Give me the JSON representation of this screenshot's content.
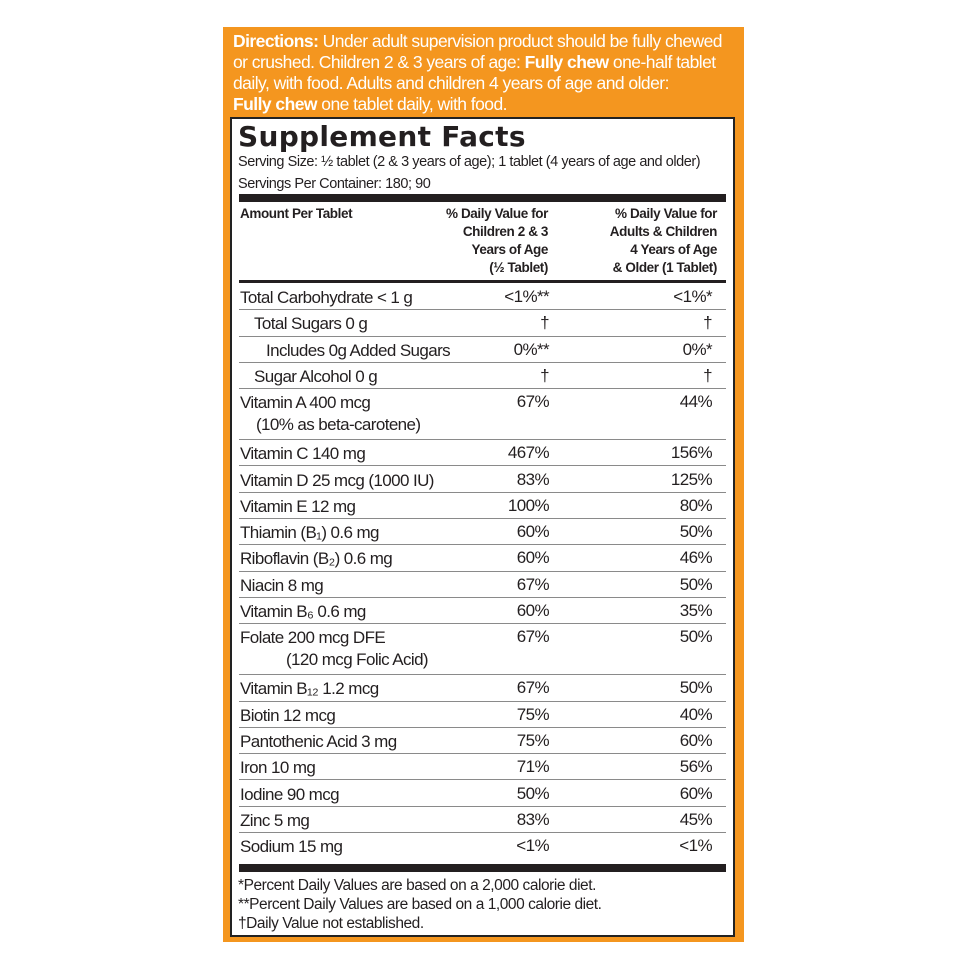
{
  "colors": {
    "background": "#f4961f",
    "panel": "#ffffff",
    "text": "#231f20"
  },
  "directions": {
    "label": "Directions:",
    "text1": " Under adult supervision product should be fully chewed or crushed. Children 2 & 3 years of age: ",
    "bold1": "Fully chew",
    "text2": " one-half tablet daily, with food. Adults and children 4 years of age and older: ",
    "bold2": "Fully chew",
    "text3": " one tablet daily, with food."
  },
  "facts": {
    "title": "Supplement Facts",
    "serving_size": "Serving Size: ½ tablet (2 & 3 years of age); 1 tablet (4 years of age and older)",
    "servings_per_container": "Servings Per Container: 180; 90",
    "header": {
      "amount": "Amount Per Tablet",
      "col1": [
        "% Daily Value for",
        "Children 2 & 3",
        "Years of Age",
        "(½ Tablet)"
      ],
      "col2": [
        "% Daily Value for",
        "Adults & Children",
        "4 Years of Age",
        "& Older (1 Tablet)"
      ]
    },
    "rows": [
      {
        "name": "Total Carbohydrate < 1 g",
        "v1": "<1%**",
        "v2": "<1%*"
      },
      {
        "name": "Total Sugars 0 g",
        "v1": "†",
        "v2": "†"
      },
      {
        "name": "Includes 0g Added Sugars",
        "v1": "0%**",
        "v2": "0%*"
      },
      {
        "name": "Sugar Alcohol 0 g",
        "v1": "†",
        "v2": "†"
      },
      {
        "name": "Vitamin A 400 mcg",
        "sub": "(10% as beta-carotene)",
        "v1": "67%",
        "v2": "44%"
      },
      {
        "name": "Vitamin C 140 mg",
        "v1": "467%",
        "v2": "156%"
      },
      {
        "name": "Vitamin D 25 mcg (1000 IU)",
        "v1": "83%",
        "v2": "125%"
      },
      {
        "name": "Vitamin E 12 mg",
        "v1": "100%",
        "v2": "80%"
      },
      {
        "name": "Thiamin (B₁) 0.6 mg",
        "v1": "60%",
        "v2": "50%"
      },
      {
        "name": "Riboflavin (B₂) 0.6 mg",
        "v1": "60%",
        "v2": "46%"
      },
      {
        "name": "Niacin 8 mg",
        "v1": "67%",
        "v2": "50%"
      },
      {
        "name": "Vitamin B₆ 0.6 mg",
        "v1": "60%",
        "v2": "35%"
      },
      {
        "name": "Folate 200 mcg DFE",
        "sub": "(120 mcg Folic Acid)",
        "v1": "67%",
        "v2": "50%"
      },
      {
        "name": "Vitamin B₁₂ 1.2 mcg",
        "v1": "67%",
        "v2": "50%"
      },
      {
        "name": "Biotin 12 mcg",
        "v1": "75%",
        "v2": "40%"
      },
      {
        "name": "Pantothenic Acid 3 mg",
        "v1": "75%",
        "v2": "60%"
      },
      {
        "name": "Iron 10 mg",
        "v1": "71%",
        "v2": "56%"
      },
      {
        "name": "Iodine 90 mcg",
        "v1": "50%",
        "v2": "60%"
      },
      {
        "name": "Zinc 5 mg",
        "v1": "83%",
        "v2": "45%"
      },
      {
        "name": "Sodium 15 mg",
        "v1": "<1%",
        "v2": "<1%"
      }
    ],
    "footnotes": [
      "*Percent Daily Values are based on a 2,000 calorie diet.",
      "**Percent Daily Values are based on a 1,000 calorie diet.",
      "†Daily Value not established."
    ]
  }
}
